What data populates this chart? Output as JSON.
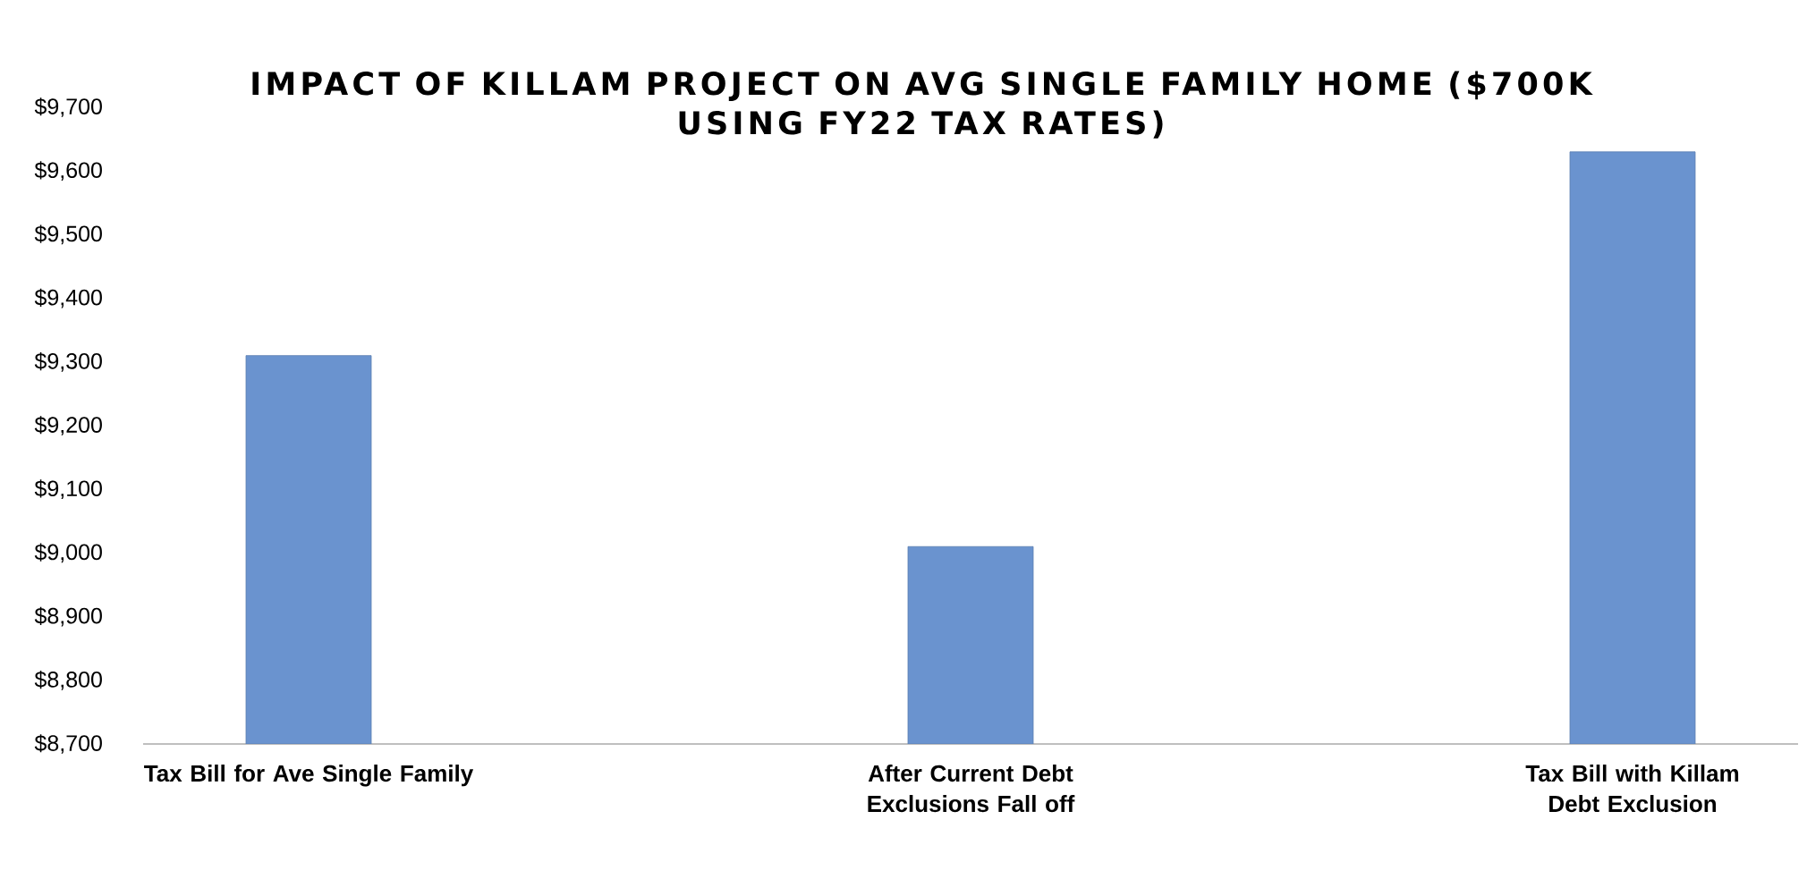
{
  "chart_data": {
    "type": "bar",
    "title": "IMPACT OF KILLAM PROJECT ON  AVG SINGLE FAMILY HOME ($700K USING FY22 TAX RATES)",
    "categories": [
      "Tax Bill for Ave Single Family",
      "After Current Debt Exclusions Fall off",
      "Tax Bill  with Killam Debt Exclusion"
    ],
    "values": [
      9310,
      9010,
      9630
    ],
    "color": "#6a93cf",
    "ylim": [
      8700,
      9700
    ],
    "yticks": [
      {
        "value": 8700,
        "label": "$8,700"
      },
      {
        "value": 8800,
        "label": "$8,800"
      },
      {
        "value": 8900,
        "label": "$8,900"
      },
      {
        "value": 9000,
        "label": "$9,000"
      },
      {
        "value": 9100,
        "label": "$9,100"
      },
      {
        "value": 9200,
        "label": "$9,200"
      },
      {
        "value": 9300,
        "label": "$9,300"
      },
      {
        "value": 9400,
        "label": "$9,400"
      },
      {
        "value": 9500,
        "label": "$9,500"
      },
      {
        "value": 9600,
        "label": "$9,600"
      },
      {
        "value": 9700,
        "label": "$9,700"
      }
    ],
    "grid": false
  }
}
